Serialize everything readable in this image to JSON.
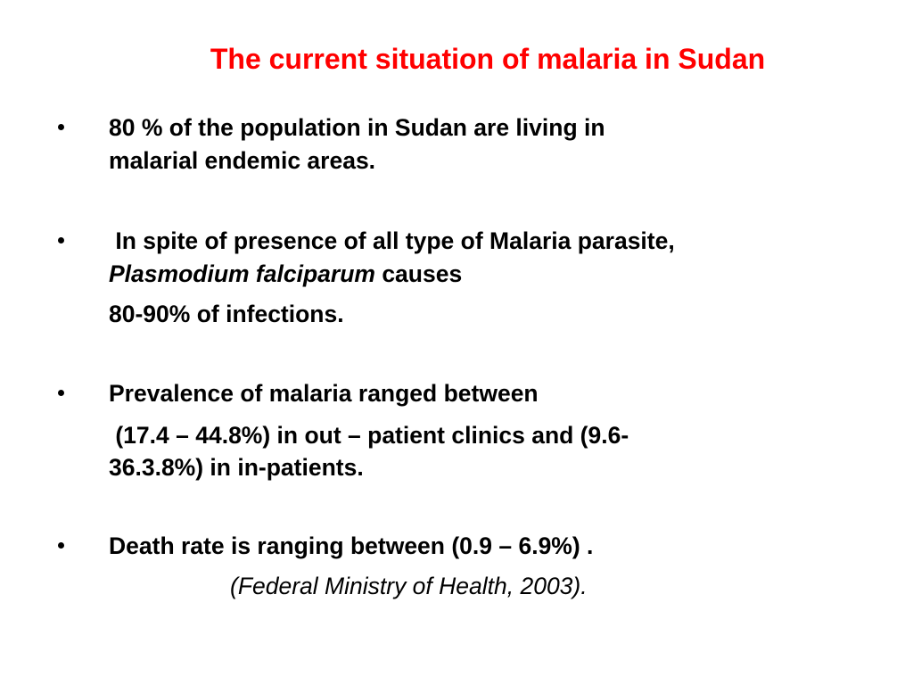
{
  "title": "The current situation of malaria in Sudan",
  "bullets": [
    {
      "lines": [
        [
          {
            "text": "80 % of the population in Sudan are living in"
          }
        ],
        [
          {
            "text": "malarial endemic areas."
          }
        ]
      ]
    },
    {
      "lines": [
        [
          {
            "text": " In spite of presence of all type of Malaria parasite,"
          }
        ],
        [
          {
            "text": "Plasmodium falciparum",
            "style": "italic"
          },
          {
            "text": " causes"
          }
        ],
        [
          {
            "text": "80-90% of infections."
          }
        ]
      ]
    },
    {
      "lines": [
        [
          {
            "text": "Prevalence of malaria ranged between"
          }
        ],
        [
          {
            "text": " (17.4 – 44.8%) in out – patient clinics and (9.6-"
          }
        ],
        [
          {
            "text": "36.3.8%) in in-patients."
          }
        ]
      ]
    },
    {
      "lines": [
        [
          {
            "text": "Death rate is ranging between (0.9 – 6.9%) ."
          }
        ]
      ]
    }
  ],
  "citation": "(Federal Ministry of Health, 2003)."
}
